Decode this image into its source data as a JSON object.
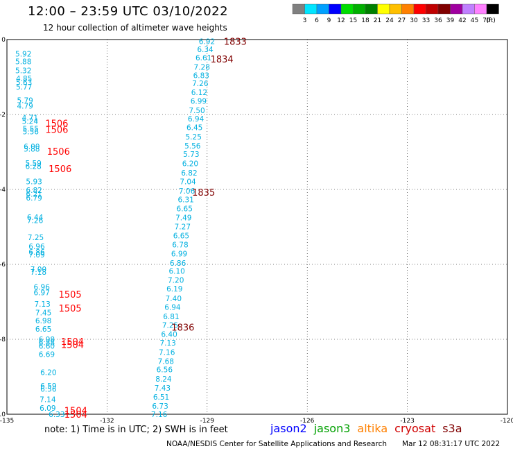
{
  "title": "12:00 – 23:59 UTC 03/10/2022",
  "subtitle": "12 hour collection of altimeter wave heights",
  "note": "note: 1) Time is in UTC; 2) SWH is in feet",
  "credit": "NOAA/NESDIS Center for Satellite Applications and Research",
  "timestamp": "Mar 12 08:31:17 UTC 2022",
  "legend": {
    "unit": "(ft)",
    "bins": [
      {
        "label": "3",
        "color": "#808080"
      },
      {
        "label": "6",
        "color": "#00e5ff"
      },
      {
        "label": "9",
        "color": "#00a0ff"
      },
      {
        "label": "12",
        "color": "#0000ff"
      },
      {
        "label": "15",
        "color": "#00dd00"
      },
      {
        "label": "18",
        "color": "#00b000"
      },
      {
        "label": "21",
        "color": "#008000"
      },
      {
        "label": "24",
        "color": "#ffff00"
      },
      {
        "label": "27",
        "color": "#ffc000"
      },
      {
        "label": "30",
        "color": "#ff8000"
      },
      {
        "label": "33",
        "color": "#ff0000"
      },
      {
        "label": "36",
        "color": "#c00000"
      },
      {
        "label": "39",
        "color": "#800000"
      },
      {
        "label": "42",
        "color": "#a000a0"
      },
      {
        "label": "45",
        "color": "#c080ff"
      },
      {
        "label": "70",
        "color": "#ff80ff"
      },
      {
        "label": "",
        "color": "#000000"
      }
    ]
  },
  "satellites": [
    {
      "name": "jason2",
      "color": "#0000ff"
    },
    {
      "name": "jason3",
      "color": "#00a000"
    },
    {
      "name": "altika",
      "color": "#ff8000"
    },
    {
      "name": "cryosat",
      "color": "#d00000"
    },
    {
      "name": "s3a",
      "color": "#800000"
    }
  ],
  "colors": {
    "value_text": "#00b0e0",
    "time_s3a": "#800000",
    "time_cryosat": "#ff0000"
  },
  "chart_data": {
    "type": "scatter",
    "xlim": [
      -135,
      -120
    ],
    "ylim": [
      -10,
      0
    ],
    "x_ticks": [
      {
        "v": -135,
        "label": "-135"
      },
      {
        "v": -132,
        "label": "-132"
      },
      {
        "v": -129,
        "label": "-129"
      },
      {
        "v": -126,
        "label": "-126"
      },
      {
        "v": -123,
        "label": "-123"
      },
      {
        "v": -120,
        "label": "-120"
      }
    ],
    "y_ticks": [
      {
        "v": 0,
        "label": "0"
      },
      {
        "v": -2,
        "label": "-2"
      },
      {
        "v": -4,
        "label": "-4"
      },
      {
        "v": -6,
        "label": "-6"
      },
      {
        "v": -8,
        "label": "-8"
      },
      {
        "v": -10,
        "label": "-10"
      }
    ],
    "grid": true,
    "series": [
      {
        "name": "s3a",
        "values": [
          {
            "x": -129.25,
            "y": -0.05,
            "label": "6.92"
          },
          {
            "x": -129.3,
            "y": -0.26,
            "label": "6.34"
          },
          {
            "x": -129.35,
            "y": -0.48,
            "label": "6.61"
          },
          {
            "x": -129.4,
            "y": -0.73,
            "label": "7.28"
          },
          {
            "x": -129.42,
            "y": -0.95,
            "label": "6.83"
          },
          {
            "x": -129.45,
            "y": -1.17,
            "label": "7.26"
          },
          {
            "x": -129.48,
            "y": -1.41,
            "label": "6.12"
          },
          {
            "x": -129.5,
            "y": -1.64,
            "label": "6.99"
          },
          {
            "x": -129.55,
            "y": -1.89,
            "label": "7.50"
          },
          {
            "x": -129.58,
            "y": -2.11,
            "label": "6.94"
          },
          {
            "x": -129.62,
            "y": -2.34,
            "label": "6.45"
          },
          {
            "x": -129.65,
            "y": -2.59,
            "label": "5.25"
          },
          {
            "x": -129.68,
            "y": -2.83,
            "label": "5.56"
          },
          {
            "x": -129.72,
            "y": -3.06,
            "label": "5.73"
          },
          {
            "x": -129.75,
            "y": -3.31,
            "label": "6.20"
          },
          {
            "x": -129.78,
            "y": -3.56,
            "label": "6.82"
          },
          {
            "x": -129.82,
            "y": -3.79,
            "label": "7.04"
          },
          {
            "x": -129.85,
            "y": -4.04,
            "label": "7.06"
          },
          {
            "x": -129.88,
            "y": -4.27,
            "label": "6.31"
          },
          {
            "x": -129.92,
            "y": -4.51,
            "label": "6.65"
          },
          {
            "x": -129.95,
            "y": -4.75,
            "label": "7.49"
          },
          {
            "x": -129.98,
            "y": -4.99,
            "label": "7.27"
          },
          {
            "x": -130.02,
            "y": -5.23,
            "label": "6.65"
          },
          {
            "x": -130.05,
            "y": -5.47,
            "label": "6.78"
          },
          {
            "x": -130.08,
            "y": -5.71,
            "label": "6.99"
          },
          {
            "x": -130.12,
            "y": -5.96,
            "label": "6.86"
          },
          {
            "x": -130.15,
            "y": -6.18,
            "label": "6.10"
          },
          {
            "x": -130.18,
            "y": -6.42,
            "label": "7.20"
          },
          {
            "x": -130.22,
            "y": -6.65,
            "label": "6.19"
          },
          {
            "x": -130.25,
            "y": -6.91,
            "label": "7.40"
          },
          {
            "x": -130.28,
            "y": -7.14,
            "label": "6.94"
          },
          {
            "x": -130.32,
            "y": -7.39,
            "label": "6.81"
          },
          {
            "x": -130.35,
            "y": -7.62,
            "label": "7.25"
          },
          {
            "x": -130.38,
            "y": -7.86,
            "label": "6.40"
          },
          {
            "x": -130.42,
            "y": -8.09,
            "label": "7.13"
          },
          {
            "x": -130.45,
            "y": -8.34,
            "label": "7.16"
          },
          {
            "x": -130.48,
            "y": -8.58,
            "label": "7.68"
          },
          {
            "x": -130.52,
            "y": -8.81,
            "label": "6.56"
          },
          {
            "x": -130.55,
            "y": -9.06,
            "label": "8.24"
          },
          {
            "x": -130.58,
            "y": -9.3,
            "label": "7.43"
          },
          {
            "x": -130.62,
            "y": -9.54,
            "label": "6.51"
          },
          {
            "x": -130.65,
            "y": -9.78,
            "label": "6.73"
          },
          {
            "x": -130.68,
            "y": -10.0,
            "label": "7.16"
          }
        ]
      },
      {
        "name": "cryosat",
        "values": [
          {
            "x": -134.75,
            "y": -0.38,
            "label": "5.92"
          },
          {
            "x": -134.75,
            "y": -0.58,
            "label": "5.88"
          },
          {
            "x": -134.75,
            "y": -0.82,
            "label": "5.32"
          },
          {
            "x": -134.73,
            "y": -1.04,
            "label": "4.85"
          },
          {
            "x": -134.73,
            "y": -1.14,
            "label": "5.63"
          },
          {
            "x": -134.73,
            "y": -1.26,
            "label": "5.77"
          },
          {
            "x": -134.7,
            "y": -1.62,
            "label": "5.79"
          },
          {
            "x": -134.7,
            "y": -1.77,
            "label": "4.79"
          },
          {
            "x": -134.55,
            "y": -2.08,
            "label": "4.71"
          },
          {
            "x": -134.55,
            "y": -2.18,
            "label": "5.24"
          },
          {
            "x": -134.53,
            "y": -2.38,
            "label": "5.55"
          },
          {
            "x": -134.53,
            "y": -2.45,
            "label": "5.56"
          },
          {
            "x": -134.5,
            "y": -2.85,
            "label": "6.00"
          },
          {
            "x": -134.5,
            "y": -2.92,
            "label": "5.88"
          },
          {
            "x": -134.45,
            "y": -3.3,
            "label": "5.59"
          },
          {
            "x": -134.45,
            "y": -3.38,
            "label": "6.28"
          },
          {
            "x": -134.43,
            "y": -3.79,
            "label": "5.93"
          },
          {
            "x": -134.43,
            "y": -4.02,
            "label": "6.82"
          },
          {
            "x": -134.43,
            "y": -4.12,
            "label": "6.21"
          },
          {
            "x": -134.43,
            "y": -4.22,
            "label": "6.79"
          },
          {
            "x": -134.4,
            "y": -4.74,
            "label": "6.44"
          },
          {
            "x": -134.4,
            "y": -4.82,
            "label": "7.26"
          },
          {
            "x": -134.38,
            "y": -5.28,
            "label": "7.25"
          },
          {
            "x": -134.35,
            "y": -5.52,
            "label": "6.96"
          },
          {
            "x": -134.35,
            "y": -5.67,
            "label": "6.86"
          },
          {
            "x": -134.35,
            "y": -5.74,
            "label": "7.09"
          },
          {
            "x": -134.3,
            "y": -6.13,
            "label": "7.00"
          },
          {
            "x": -134.3,
            "y": -6.2,
            "label": "7.18"
          },
          {
            "x": -134.2,
            "y": -6.6,
            "label": "6.96"
          },
          {
            "x": -134.2,
            "y": -6.75,
            "label": "6.97"
          },
          {
            "x": -134.18,
            "y": -7.06,
            "label": "7.13"
          },
          {
            "x": -134.15,
            "y": -7.29,
            "label": "7.45"
          },
          {
            "x": -134.15,
            "y": -7.5,
            "label": "6.98"
          },
          {
            "x": -134.15,
            "y": -7.72,
            "label": "6.65"
          },
          {
            "x": -134.05,
            "y": -8.0,
            "label": "6.98"
          },
          {
            "x": -134.05,
            "y": -8.08,
            "label": "6.88"
          },
          {
            "x": -134.05,
            "y": -8.18,
            "label": "6.60"
          },
          {
            "x": -134.05,
            "y": -8.4,
            "label": "6.69"
          },
          {
            "x": -134.0,
            "y": -8.88,
            "label": "6.20"
          },
          {
            "x": -134.0,
            "y": -9.24,
            "label": "6.59"
          },
          {
            "x": -134.0,
            "y": -9.32,
            "label": "6.56"
          },
          {
            "x": -134.02,
            "y": -9.6,
            "label": "7.14"
          },
          {
            "x": -134.02,
            "y": -9.83,
            "label": "6.09"
          },
          {
            "x": -133.75,
            "y": -10.0,
            "label": "6.33"
          }
        ]
      }
    ],
    "annotations": [
      {
        "x": -128.5,
        "y": -0.05,
        "label": "1833",
        "series": "s3a"
      },
      {
        "x": -128.9,
        "y": -0.52,
        "label": "1834",
        "series": "s3a"
      },
      {
        "x": -129.45,
        "y": -4.07,
        "label": "1835",
        "series": "s3a"
      },
      {
        "x": -130.07,
        "y": -7.68,
        "label": "1836",
        "series": "s3a"
      },
      {
        "x": -133.85,
        "y": -2.23,
        "label": "1506",
        "series": "cryosat"
      },
      {
        "x": -133.85,
        "y": -2.4,
        "label": "1506",
        "series": "cryosat"
      },
      {
        "x": -133.8,
        "y": -2.98,
        "label": "1506",
        "series": "cryosat"
      },
      {
        "x": -133.75,
        "y": -3.44,
        "label": "1506",
        "series": "cryosat"
      },
      {
        "x": -133.45,
        "y": -6.8,
        "label": "1505",
        "series": "cryosat"
      },
      {
        "x": -133.45,
        "y": -7.17,
        "label": "1505",
        "series": "cryosat"
      },
      {
        "x": -133.38,
        "y": -8.06,
        "label": "1504",
        "series": "cryosat"
      },
      {
        "x": -133.38,
        "y": -8.14,
        "label": "1504",
        "series": "cryosat"
      },
      {
        "x": -133.28,
        "y": -9.9,
        "label": "1504",
        "series": "cryosat"
      },
      {
        "x": -133.28,
        "y": -10.0,
        "label": "1504",
        "series": "cryosat"
      }
    ]
  }
}
